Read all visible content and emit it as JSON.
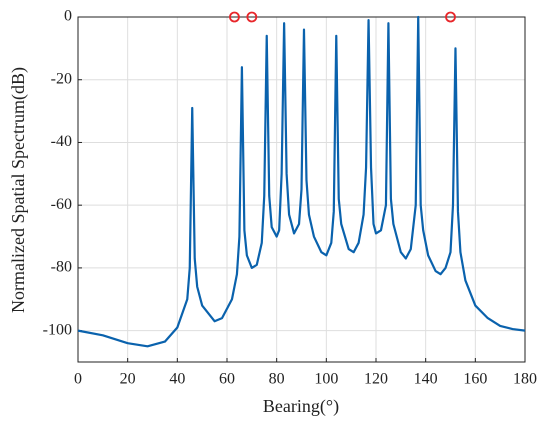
{
  "chart_data": {
    "type": "line",
    "xlabel": "Bearing(°)",
    "ylabel": "Normalized Spatial Spectrum(dB)",
    "x": [
      0,
      10,
      20,
      28,
      35,
      40,
      44,
      45,
      46,
      47,
      48,
      50,
      55,
      58,
      62,
      64,
      65,
      66,
      67,
      68,
      70,
      72,
      74,
      75,
      76,
      77,
      78,
      80,
      81,
      82,
      83,
      84,
      85,
      87,
      89,
      90,
      91,
      92,
      93,
      95,
      98,
      100,
      102,
      103,
      104,
      105,
      106,
      109,
      111,
      113,
      115,
      116,
      117,
      118,
      119,
      120,
      122,
      124,
      125,
      126,
      127,
      130,
      132,
      134,
      136,
      137,
      138,
      139,
      141,
      144,
      146,
      148,
      150,
      151,
      152,
      153,
      154,
      156,
      160,
      165,
      170,
      175,
      180
    ],
    "series": [
      {
        "color": "#0a62ad",
        "values": [
          -100,
          -101.5,
          -104,
          -105,
          -103.5,
          -99,
          -90,
          -80,
          -29,
          -77,
          -86,
          -92,
          -97,
          -96,
          -90,
          -82,
          -70,
          -16,
          -68,
          -76,
          -80,
          -79,
          -72,
          -57,
          -6,
          -57,
          -67,
          -70,
          -68,
          -50,
          -2,
          -50,
          -63,
          -69,
          -66,
          -55,
          -4,
          -52,
          -63,
          -70,
          -75,
          -76,
          -72,
          -62,
          -6,
          -58,
          -66,
          -74,
          -75,
          -72,
          -63,
          -48,
          -1,
          -48,
          -66,
          -69,
          -68,
          -60,
          -2,
          -58,
          -66,
          -75,
          -77,
          -74,
          -60,
          0,
          -60,
          -68,
          -76,
          -81,
          -82,
          -80,
          -75,
          -60,
          -10,
          -62,
          -75,
          -84,
          -92,
          -96,
          -98.5,
          -99.5,
          -100
        ]
      }
    ],
    "markers": {
      "color": "#e8262a",
      "x": [
        63,
        70,
        150
      ],
      "values": [
        0,
        0,
        0
      ]
    },
    "xlim": [
      0,
      180
    ],
    "xticks": [
      0,
      20,
      40,
      60,
      80,
      100,
      120,
      140,
      160,
      180
    ],
    "ylim": [
      -110,
      0
    ],
    "yticks": [
      -100,
      -80,
      -60,
      -40,
      -20,
      0
    ],
    "grid": true
  }
}
